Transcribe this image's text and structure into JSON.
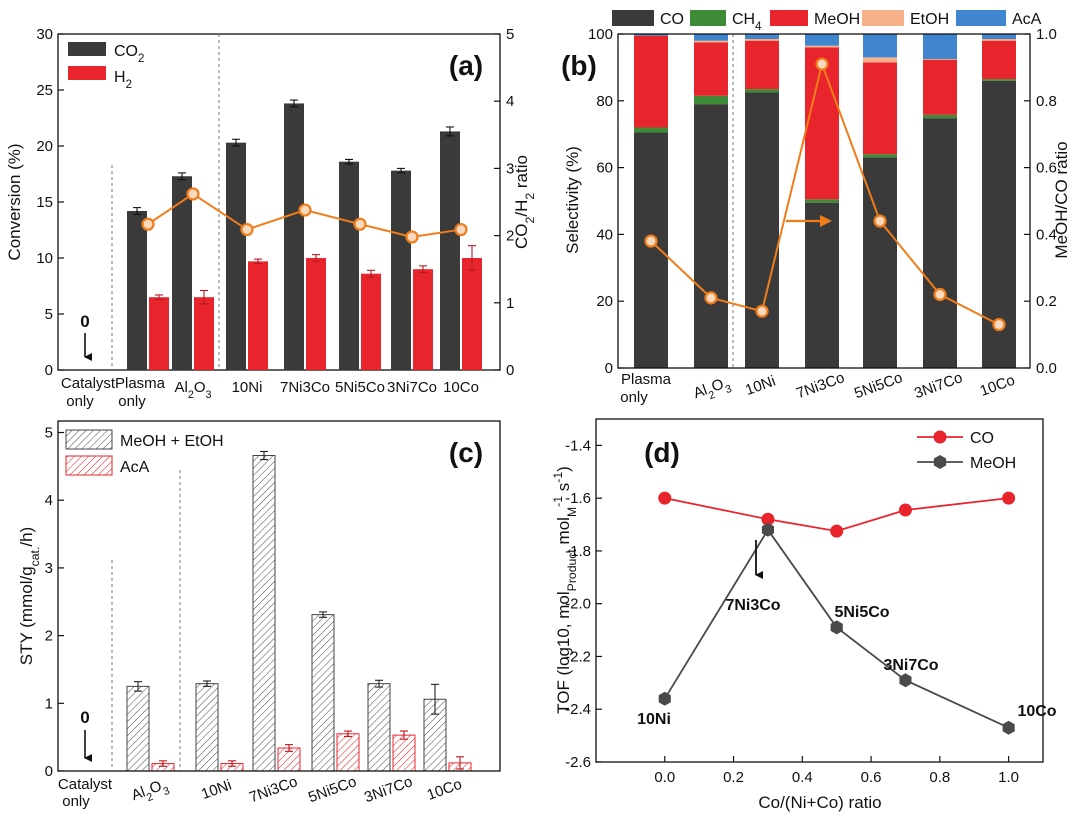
{
  "chart_data": [
    {
      "panel": "(a)",
      "type": "bar",
      "categories": [
        "Catalyst only",
        "Plasma only",
        "Al2O3",
        "10Ni",
        "7Ni3Co",
        "5Ni5Co",
        "3Ni7Co",
        "10Co"
      ],
      "series": [
        {
          "name": "CO2",
          "values": [
            0,
            14.2,
            17.3,
            20.3,
            23.8,
            18.6,
            17.8,
            21.3
          ],
          "errors": [
            0,
            0.3,
            0.3,
            0.3,
            0.3,
            0.2,
            0.2,
            0.4
          ],
          "color": "#3a3a3a"
        },
        {
          "name": "H2",
          "values": [
            0,
            6.5,
            6.5,
            9.7,
            10.0,
            8.6,
            9.0,
            10.0
          ],
          "errors": [
            0,
            0.2,
            0.6,
            0.2,
            0.3,
            0.3,
            0.3,
            1.1
          ],
          "color": "#e8242c"
        }
      ],
      "line_series": {
        "values": [
          null,
          2.17,
          2.62,
          2.09,
          2.38,
          2.17,
          1.98,
          2.09
        ],
        "color": "#f07d1a"
      },
      "ylabel": "Conversion (%)",
      "ylim": [
        0,
        30
      ],
      "y2label": "CO2/H2 ratio",
      "y2lim": [
        0,
        5
      ],
      "annotation": "0"
    },
    {
      "panel": "(b)",
      "type": "bar",
      "stacked": true,
      "categories": [
        "Plasma only",
        "Al2O3",
        "10Ni",
        "7Ni3Co",
        "5Ni5Co",
        "3Ni7Co",
        "10Co"
      ],
      "series": [
        {
          "name": "CO",
          "values": [
            70.5,
            79.0,
            82.5,
            49.5,
            63.0,
            74.8,
            86.0
          ],
          "color": "#3a3a3a"
        },
        {
          "name": "CH4",
          "values": [
            1.5,
            2.5,
            1.0,
            1.0,
            1.0,
            1.0,
            0.5
          ],
          "color": "#3e8a36"
        },
        {
          "name": "MeOH",
          "values": [
            27.5,
            16.0,
            14.5,
            45.5,
            27.5,
            16.5,
            11.5
          ],
          "color": "#e8242c"
        },
        {
          "name": "EtOH",
          "values": [
            0.0,
            0.5,
            0.5,
            0.5,
            1.5,
            0.2,
            0.5
          ],
          "color": "#f6b08a"
        },
        {
          "name": "AcA",
          "values": [
            0.5,
            2.0,
            1.5,
            3.5,
            7.0,
            7.5,
            1.5
          ],
          "color": "#3f86cf"
        }
      ],
      "line_series": {
        "values": [
          0.38,
          0.21,
          0.17,
          0.91,
          0.44,
          0.22,
          0.13
        ],
        "color": "#f07d1a"
      },
      "ylabel": "Selectivity (%)",
      "ylim": [
        0,
        100
      ],
      "y2label": "MeOH/CO ratio",
      "y2lim": [
        0.0,
        1.0
      ]
    },
    {
      "panel": "(c)",
      "type": "bar",
      "categories": [
        "Catalyst only",
        "Al2O3",
        "10Ni",
        "7Ni3Co",
        "5Ni5Co",
        "3Ni7Co",
        "10Co"
      ],
      "series": [
        {
          "name": "MeOH + EtOH",
          "values": [
            0,
            1.25,
            1.29,
            4.66,
            2.31,
            1.29,
            1.06
          ],
          "errors": [
            0,
            0.07,
            0.04,
            0.06,
            0.04,
            0.05,
            0.22
          ],
          "color": "#555555"
        },
        {
          "name": "AcA",
          "values": [
            0,
            0.11,
            0.11,
            0.34,
            0.55,
            0.53,
            0.12
          ],
          "errors": [
            0,
            0.04,
            0.04,
            0.05,
            0.04,
            0.06,
            0.09
          ],
          "color": "#e8242c"
        }
      ],
      "ylabel": "STY (mmol/g_cat./h)",
      "ylim": [
        0,
        5.2
      ],
      "annotation": "0"
    },
    {
      "panel": "(d)",
      "type": "line",
      "xlabel": "Co/(Ni+Co) ratio",
      "ylabel": "TOF (log10, mol_Product mol_M^-1 s^-1)",
      "xlim": [
        -0.2,
        1.1
      ],
      "ylim": [
        -2.6,
        -1.3
      ],
      "series": [
        {
          "name": "CO",
          "x": [
            0.0,
            0.3,
            0.5,
            0.7,
            1.0
          ],
          "y": [
            -1.6,
            -1.68,
            -1.725,
            -1.645,
            -1.6
          ],
          "color": "#e8242c"
        },
        {
          "name": "MeOH",
          "x": [
            0.0,
            0.3,
            0.5,
            0.7,
            1.0
          ],
          "y": [
            -2.36,
            -1.72,
            -2.09,
            -2.29,
            -2.47
          ],
          "color": "#4a4a4a"
        }
      ],
      "point_labels": [
        "10Ni",
        "7Ni3Co",
        "5Ni5Co",
        "3Ni7Co",
        "10Co"
      ]
    }
  ]
}
